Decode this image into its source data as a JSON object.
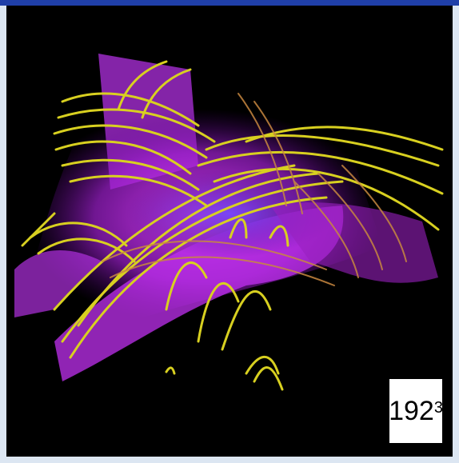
{
  "label": {
    "base": "192",
    "exponent": "3"
  }
}
